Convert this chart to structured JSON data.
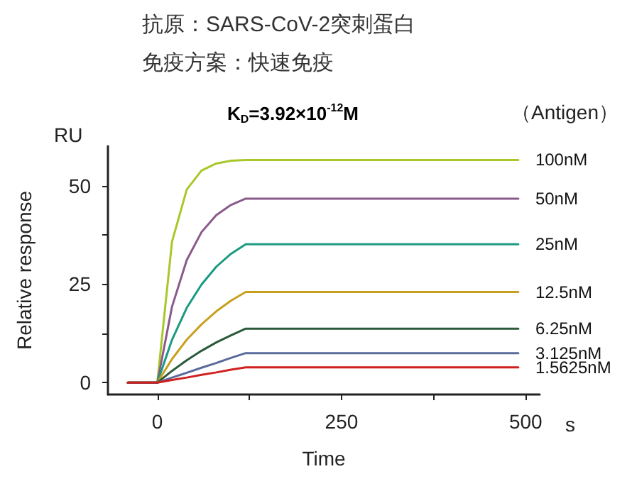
{
  "chart_data": {
    "type": "line",
    "title": "抗原：SARS-CoV-2突刺蛋白",
    "subtitle": "免疫方案：快速免疫",
    "xlabel": "Time",
    "ylabel": "Relative response",
    "annotations": [
      "K$_{D}$=3.92×10$^{-12}$M",
      "（Antigen）",
      "RU",
      "s"
    ],
    "x": [
      -40,
      0,
      20,
      40,
      60,
      80,
      100,
      120,
      490
    ],
    "series": [
      {
        "name": "100nM",
        "color": "#a8c82a",
        "values": [
          0,
          0,
          35.8,
          49.0,
          53.8,
          55.6,
          56.3,
          56.5,
          56.5
        ]
      },
      {
        "name": "50nM",
        "color": "#8a5a8a",
        "values": [
          0,
          0,
          19.3,
          31.1,
          38.2,
          42.5,
          45.1,
          46.7,
          46.7
        ]
      },
      {
        "name": "25nM",
        "color": "#1a9a80",
        "values": [
          0,
          0,
          10.9,
          19.0,
          24.9,
          29.4,
          32.7,
          35.1,
          35.1
        ]
      },
      {
        "name": "12.5nM",
        "color": "#c8a020",
        "values": [
          0,
          0,
          6.0,
          10.9,
          14.8,
          18.1,
          20.8,
          23.0,
          23.0
        ]
      },
      {
        "name": "6.25nM",
        "color": "#2a5a3a",
        "values": [
          0,
          0,
          3.0,
          5.7,
          8.1,
          10.2,
          12.0,
          13.7,
          13.7
        ]
      },
      {
        "name": "3.125nM",
        "color": "#5a6a9a",
        "values": [
          0,
          0,
          1.3,
          2.5,
          3.8,
          5.0,
          6.3,
          7.5,
          7.5
        ]
      },
      {
        "name": "1.5625nM",
        "color": "#d02020",
        "values": [
          0,
          0,
          0.7,
          1.3,
          2.0,
          2.6,
          3.3,
          3.9,
          3.9
        ]
      }
    ],
    "xlim": [
      -67,
      519
    ],
    "xticks": [
      0,
      {
        "value": 125,
        "label": null
      },
      250,
      {
        "value": 375,
        "label": null
      },
      500
    ],
    "ylim": [
      -3,
      60
    ],
    "yticks": [
      0,
      {
        "value": 12.5,
        "label": null
      },
      25,
      {
        "value": 37.5,
        "label": null
      },
      50
    ],
    "grid": false,
    "legend": false,
    "marker": "none",
    "line_style": "solid"
  }
}
